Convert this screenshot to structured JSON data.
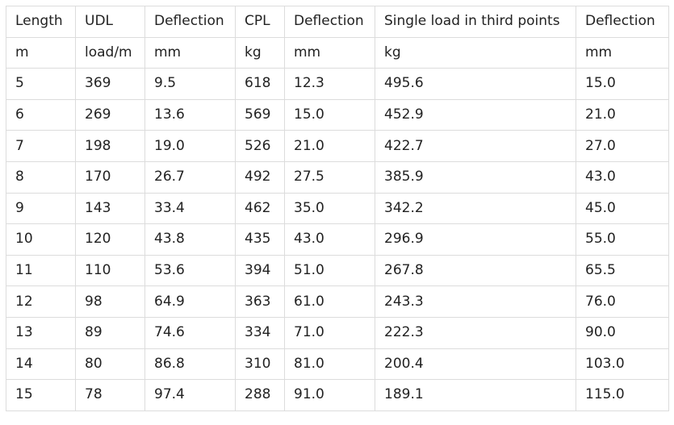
{
  "table": {
    "headers": [
      "Length",
      "UDL",
      "Deflection",
      "CPL",
      "Deflection",
      "Single load in third points",
      "Deflection"
    ],
    "units": [
      "m",
      "load/m",
      "mm",
      "kg",
      "mm",
      "kg",
      "mm"
    ],
    "rows": [
      [
        "5",
        "369",
        "9.5",
        "618",
        "12.3",
        "495.6",
        "15.0"
      ],
      [
        "6",
        "269",
        "13.6",
        "569",
        "15.0",
        "452.9",
        "21.0"
      ],
      [
        "7",
        "198",
        "19.0",
        "526",
        "21.0",
        "422.7",
        "27.0"
      ],
      [
        "8",
        "170",
        "26.7",
        "492",
        "27.5",
        "385.9",
        "43.0"
      ],
      [
        "9",
        "143",
        "33.4",
        "462",
        "35.0",
        "342.2",
        "45.0"
      ],
      [
        "10",
        "120",
        "43.8",
        "435",
        "43.0",
        "296.9",
        "55.0"
      ],
      [
        "11",
        "110",
        "53.6",
        "394",
        "51.0",
        "267.8",
        "65.5"
      ],
      [
        "12",
        "98",
        "64.9",
        "363",
        "61.0",
        "243.3",
        "76.0"
      ],
      [
        "13",
        "89",
        "74.6",
        "334",
        "71.0",
        "222.3",
        "90.0"
      ],
      [
        "14",
        "80",
        "86.8",
        "310",
        "81.0",
        "200.4",
        "103.0"
      ],
      [
        "15",
        "78",
        "97.4",
        "288",
        "91.0",
        "189.1",
        "115.0"
      ]
    ]
  }
}
